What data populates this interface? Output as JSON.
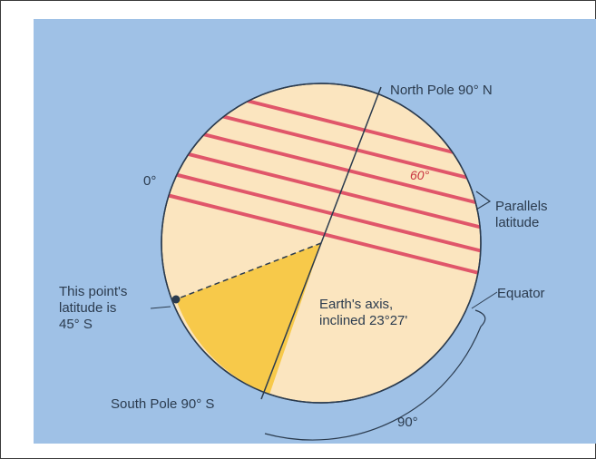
{
  "diagram": {
    "labels": {
      "north_pole": "North Pole 90° N",
      "zero_degrees": "0°",
      "sixty_degrees": "60°",
      "parallels_line1": "Parallels",
      "parallels_line2": "latitude",
      "equator": "Equator",
      "point_line1": "This point's",
      "point_line2": "latitude is",
      "point_line3": "45° S",
      "axis_line1": "Earth's axis,",
      "axis_line2": "inclined 23°27'",
      "south_pole": "South Pole 90° S",
      "ninety_degrees": "90°"
    },
    "colors": {
      "background": "#9fc1e6",
      "globe": "#fbe5bf",
      "wedge": "#f7c94a",
      "parallels": "#e0566a",
      "ink": "#2b3b4e"
    }
  }
}
